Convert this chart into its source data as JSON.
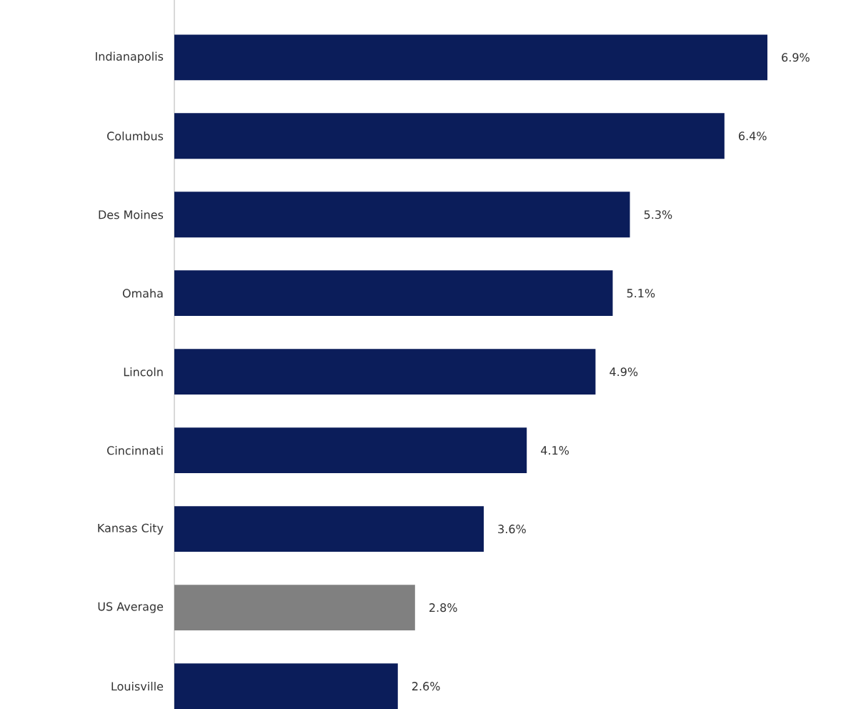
{
  "chart_data": {
    "type": "bar",
    "orientation": "horizontal",
    "categories": [
      "Indianapolis",
      "Columbus",
      "Des Moines",
      "Omaha",
      "Lincoln",
      "Cincinnati",
      "Kansas City",
      "US Average",
      "Louisville"
    ],
    "values": [
      6.9,
      6.4,
      5.3,
      5.1,
      4.9,
      4.1,
      3.6,
      2.8,
      2.6
    ],
    "colors": [
      "#0b1d5a",
      "#0b1d5a",
      "#0b1d5a",
      "#0b1d5a",
      "#0b1d5a",
      "#0b1d5a",
      "#0b1d5a",
      "#808080",
      "#0b1d5a"
    ],
    "value_labels": [
      "6.9%",
      "6.4%",
      "5.3%",
      "5.1%",
      "4.9%",
      "4.1%",
      "3.6%",
      "2.8%",
      "2.6%"
    ]
  }
}
